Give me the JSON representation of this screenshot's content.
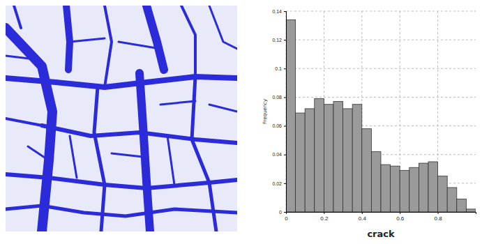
{
  "chart_data": {
    "type": "histogram",
    "x_label": "crack",
    "y_label": "Frequency",
    "bins": [
      0,
      0.05,
      0.1,
      0.15,
      0.2,
      0.25,
      0.3,
      0.35,
      0.4,
      0.45,
      0.5,
      0.55,
      0.6,
      0.65,
      0.7,
      0.75,
      0.8,
      0.85,
      0.9,
      0.95,
      1
    ],
    "values": [
      0.134,
      0.069,
      0.072,
      0.079,
      0.075,
      0.077,
      0.072,
      0.075,
      0.058,
      0.042,
      0.033,
      0.032,
      0.029,
      0.031,
      0.034,
      0.035,
      0.025,
      0.017,
      0.009,
      0.002
    ],
    "color": "#9a9a9a",
    "xlim": [
      0,
      1
    ],
    "xticks": [
      0,
      0.2,
      0.4,
      0.6,
      0.8
    ],
    "ylim": [
      0,
      0.14
    ],
    "yticks": [
      0,
      0.02,
      0.04,
      0.06,
      0.08,
      0.1,
      0.12,
      0.14
    ],
    "grid": true
  }
}
